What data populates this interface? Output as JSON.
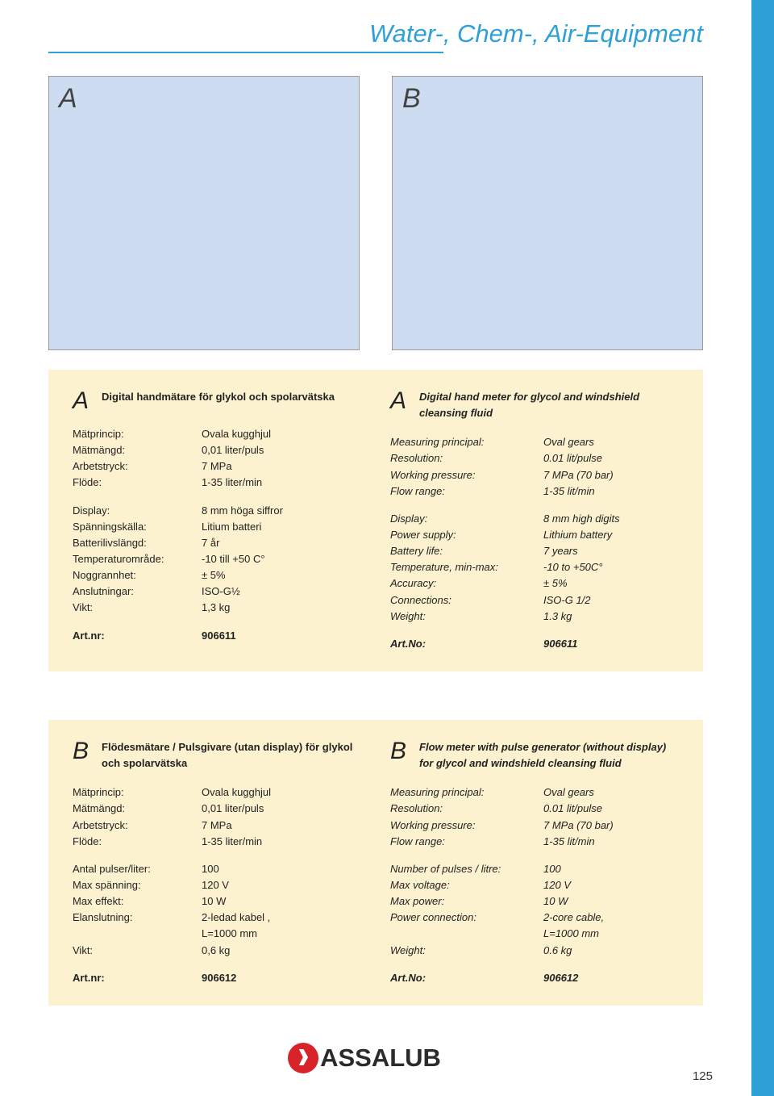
{
  "header": {
    "title": "Water-, Chem-, Air-Equipment",
    "titleColor": "#2da0d8",
    "ruleColor": "#2da0d8"
  },
  "figures": {
    "a": {
      "label": "A",
      "bg": "#cddcf0"
    },
    "b": {
      "label": "B",
      "bg": "#cddcf0"
    }
  },
  "blockA": {
    "sv": {
      "letter": "A",
      "title": "Digital handmätare för glykol och spolarvätska",
      "rows1": [
        {
          "k": "Mätprincip:",
          "v": "Ovala kugghjul"
        },
        {
          "k": "Mätmängd:",
          "v": "0,01 liter/puls"
        },
        {
          "k": "Arbetstryck:",
          "v": "7 MPa"
        },
        {
          "k": "Flöde:",
          "v": "1-35 liter/min"
        }
      ],
      "rows2": [
        {
          "k": "Display:",
          "v": "8 mm höga siffror"
        },
        {
          "k": "Spänningskälla:",
          "v": "Litium batteri"
        },
        {
          "k": "Batterilivslängd:",
          "v": "7 år"
        },
        {
          "k": "Temperaturområde:",
          "v": "-10 till +50 C°"
        },
        {
          "k": "Noggrannhet:",
          "v": "± 5%"
        },
        {
          "k": "Anslutningar:",
          "v": "ISO-G½"
        },
        {
          "k": "Vikt:",
          "v": "1,3 kg"
        }
      ],
      "art": {
        "k": "Art.nr:",
        "v": "906611"
      }
    },
    "en": {
      "letter": "A",
      "title": "Digital hand meter for glycol and windshield cleansing fluid",
      "rows1": [
        {
          "k": "Measuring principal:",
          "v": "Oval gears"
        },
        {
          "k": "Resolution:",
          "v": "0.01 lit/pulse"
        },
        {
          "k": "Working pressure:",
          "v": "7 MPa (70 bar)"
        },
        {
          "k": "Flow range:",
          "v": "1-35 lit/min"
        }
      ],
      "rows2": [
        {
          "k": "Display:",
          "v": "8 mm high digits"
        },
        {
          "k": "Power supply:",
          "v": "Lithium battery"
        },
        {
          "k": "Battery life:",
          "v": "7 years"
        },
        {
          "k": "Temperature, min-max:",
          "v": "-10 to +50C°"
        },
        {
          "k": "Accuracy:",
          "v": "± 5%"
        },
        {
          "k": "Connections:",
          "v": "ISO-G 1/2"
        },
        {
          "k": "Weight:",
          "v": "1.3 kg"
        }
      ],
      "art": {
        "k": "Art.No:",
        "v": "906611"
      }
    }
  },
  "blockB": {
    "sv": {
      "letter": "B",
      "title": "Flödesmätare / Pulsgivare (utan display) för glykol och spolarvätska",
      "rows1": [
        {
          "k": "Mätprincip:",
          "v": "Ovala kugghjul"
        },
        {
          "k": "Mätmängd:",
          "v": "0,01 liter/puls"
        },
        {
          "k": "Arbetstryck:",
          "v": "7 MPa"
        },
        {
          "k": "Flöde:",
          "v": "1-35 liter/min"
        }
      ],
      "rows2": [
        {
          "k": "Antal pulser/liter:",
          "v": "100"
        },
        {
          "k": "Max spänning:",
          "v": "120 V"
        },
        {
          "k": "Max effekt:",
          "v": "10 W"
        },
        {
          "k": "Elanslutning:",
          "v": "2-ledad kabel ,"
        },
        {
          "k": "",
          "v": "L=1000 mm"
        },
        {
          "k": "Vikt:",
          "v": "0,6 kg"
        }
      ],
      "art": {
        "k": "Art.nr:",
        "v": "906612"
      }
    },
    "en": {
      "letter": "B",
      "title": "Flow meter with pulse generator (without display) for glycol and windshield cleansing fluid",
      "rows1": [
        {
          "k": "Measuring principal:",
          "v": "Oval gears"
        },
        {
          "k": "Resolution:",
          "v": "0.01 lit/pulse"
        },
        {
          "k": "Working pressure:",
          "v": "7 MPa (70 bar)"
        },
        {
          "k": "Flow range:",
          "v": "1-35 lit/min"
        }
      ],
      "rows2": [
        {
          "k": "Number of pulses / litre:",
          "v": "100"
        },
        {
          "k": "Max voltage:",
          "v": "120 V"
        },
        {
          "k": "Max power:",
          "v": "10 W"
        },
        {
          "k": "Power connection:",
          "v": "2-core cable,"
        },
        {
          "k": "",
          "v": "L=1000 mm"
        },
        {
          "k": "Weight:",
          "v": "0.6 kg"
        }
      ],
      "art": {
        "k": "Art.No:",
        "v": "906612"
      }
    }
  },
  "logo": {
    "text": "ASSALUB",
    "badgeColor": "#d8232a"
  },
  "pageNumber": "125",
  "colors": {
    "blockBg": "#fcf2cf",
    "sidebar": "#2da0d8"
  }
}
